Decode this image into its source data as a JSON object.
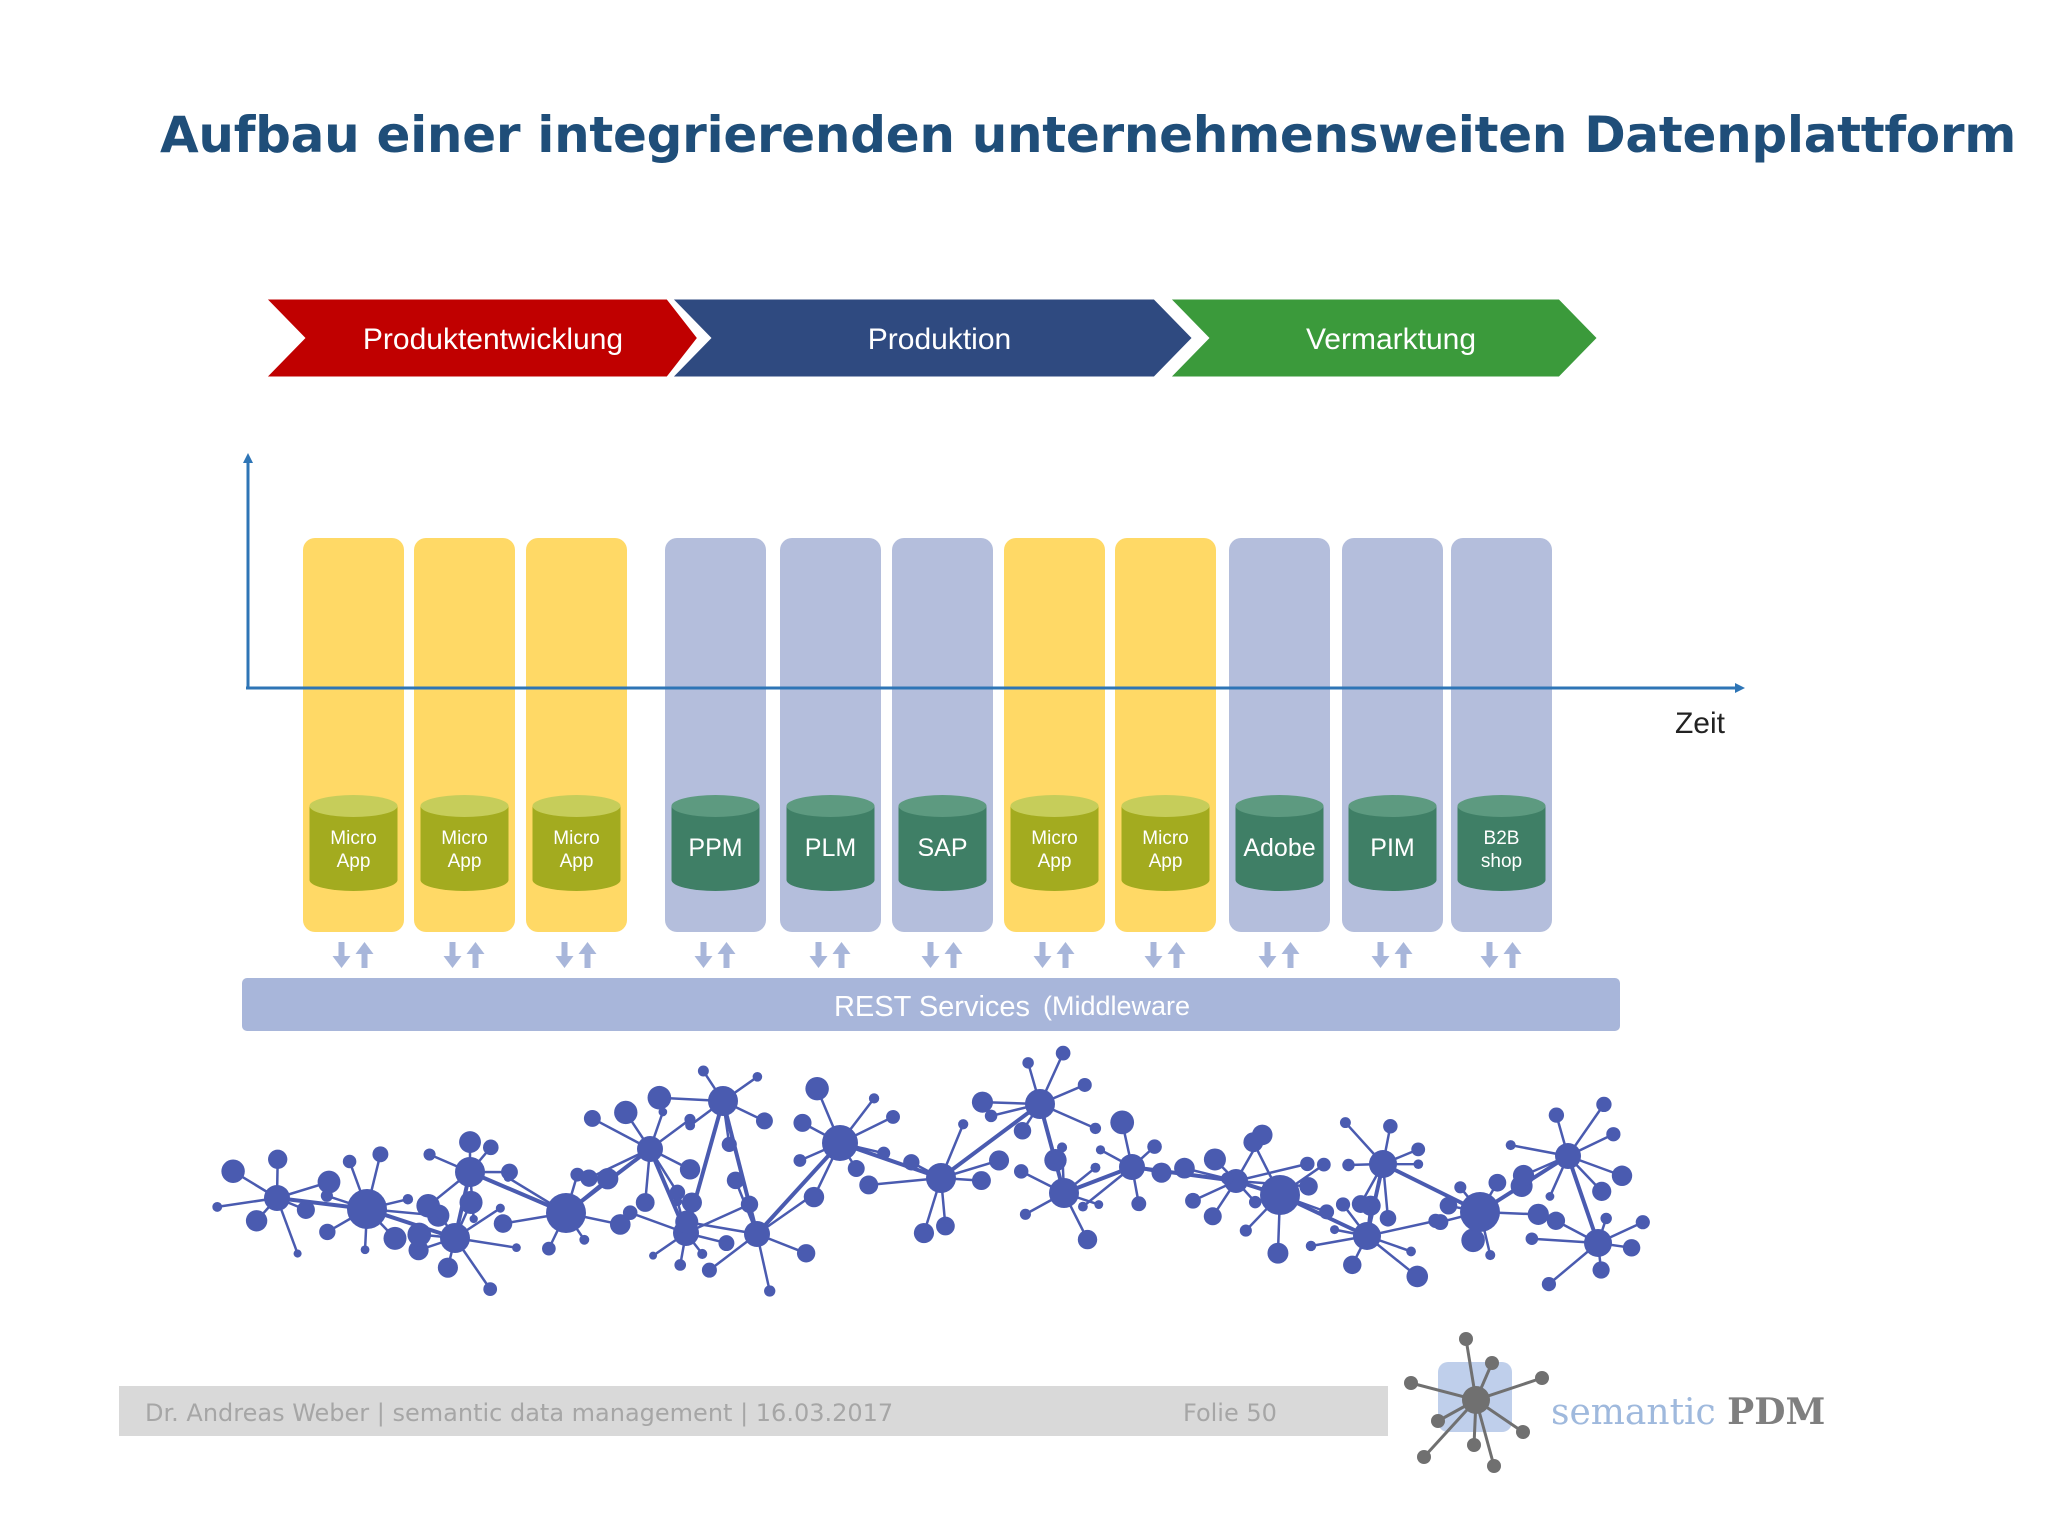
{
  "slide": {
    "title": "Aufbau einer integrierenden unternehmensweiten Datenplattform"
  },
  "phases": [
    {
      "label": "Produktentwicklung",
      "color": "#c00000"
    },
    {
      "label": "Produktion",
      "color": "#2f4a80"
    },
    {
      "label": "Vermarktung",
      "color": "#3b9a3b"
    }
  ],
  "axis": {
    "x_label": "Zeit"
  },
  "columns": [
    {
      "kind": "micro",
      "label": "Micro\nApp"
    },
    {
      "kind": "micro",
      "label": "Micro\nApp"
    },
    {
      "kind": "micro",
      "label": "Micro\nApp"
    },
    {
      "kind": "system",
      "label": "PPM"
    },
    {
      "kind": "system",
      "label": "PLM"
    },
    {
      "kind": "system",
      "label": "SAP"
    },
    {
      "kind": "micro",
      "label": "Micro\nApp"
    },
    {
      "kind": "micro",
      "label": "Micro\nApp"
    },
    {
      "kind": "system",
      "label": "Adobe"
    },
    {
      "kind": "system",
      "label": "PIM"
    },
    {
      "kind": "system",
      "label": "B2B\nshop"
    }
  ],
  "middleware": {
    "label": "REST Services",
    "sublabel": "(Middleware"
  },
  "footer": {
    "text": "Dr. Andreas Weber  |  semantic data management  |  16.03.2017",
    "page": "Folie 50"
  },
  "logo": {
    "word1": "semantic ",
    "word2": "PDM"
  },
  "colors": {
    "title": "#1f4e79",
    "micro_column": "#ffd966",
    "system_column": "#b4bedc",
    "micro_db": "#a3ab1f",
    "system_db": "#3f7f66",
    "middleware": "#a8b6da",
    "network": "#4a5bb0"
  }
}
